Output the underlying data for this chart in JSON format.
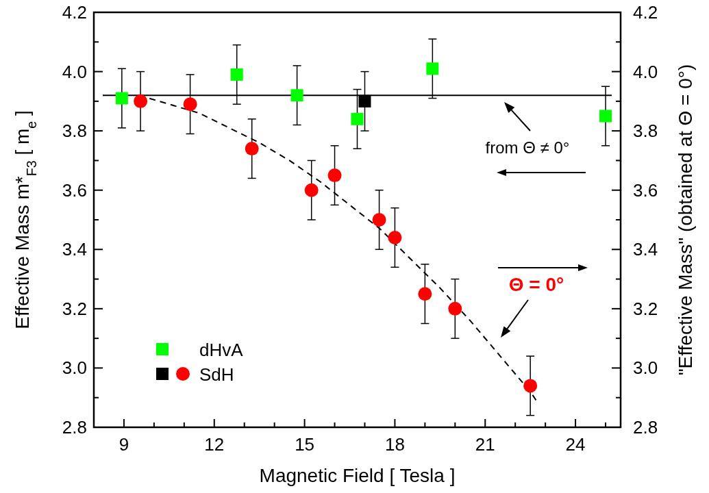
{
  "chart_data": {
    "type": "scatter",
    "xlabel": "Magnetic Field  [ Tesla ]",
    "ylabel": "Effective Mass  m*$_{F3}$ [ m$_{e}$ ]",
    "y2label": "\"Effective Mass\"  (obtained at Θ = 0°)",
    "xlim": [
      8,
      25.5
    ],
    "xticks": [
      {
        "value": 8,
        "label": null
      },
      9,
      {
        "value": 10,
        "label": null
      },
      {
        "value": 11,
        "label": null
      },
      12,
      {
        "value": 13,
        "label": null
      },
      {
        "value": 14,
        "label": null
      },
      15,
      {
        "value": 16,
        "label": null
      },
      {
        "value": 17,
        "label": null
      },
      18,
      {
        "value": 19,
        "label": null
      },
      {
        "value": 20,
        "label": null
      },
      21,
      {
        "value": 22,
        "label": null
      },
      {
        "value": 23,
        "label": null
      },
      24,
      {
        "value": 25,
        "label": null
      }
    ],
    "ylim": [
      2.8,
      4.2
    ],
    "yticks": [
      {
        "value": 2.8,
        "label": "2.8"
      },
      {
        "value": 2.9,
        "label": null
      },
      {
        "value": 3.0,
        "label": "3.0"
      },
      {
        "value": 3.1,
        "label": null
      },
      {
        "value": 3.2,
        "label": "3.2"
      },
      {
        "value": 3.3,
        "label": null
      },
      {
        "value": 3.4,
        "label": "3.4"
      },
      {
        "value": 3.5,
        "label": null
      },
      {
        "value": 3.6,
        "label": "3.6"
      },
      {
        "value": 3.7,
        "label": null
      },
      {
        "value": 3.8,
        "label": "3.8"
      },
      {
        "value": 3.9,
        "label": null
      },
      {
        "value": 4.0,
        "label": "4.0"
      },
      {
        "value": 4.1,
        "label": null
      },
      {
        "value": 4.2,
        "label": "4.2"
      }
    ],
    "y2lim": [
      2.8,
      4.2
    ],
    "y2ticks": [
      {
        "value": 2.8,
        "label": "2.8"
      },
      {
        "value": 2.9,
        "label": null
      },
      {
        "value": 3.0,
        "label": "3.0"
      },
      {
        "value": 3.1,
        "label": null
      },
      {
        "value": 3.2,
        "label": "3.2"
      },
      {
        "value": 3.3,
        "label": null
      },
      {
        "value": 3.4,
        "label": "3.4"
      },
      {
        "value": 3.5,
        "label": null
      },
      {
        "value": 3.6,
        "label": "3.6"
      },
      {
        "value": 3.7,
        "label": null
      },
      {
        "value": 3.8,
        "label": "3.8"
      },
      {
        "value": 3.9,
        "label": null
      },
      {
        "value": 4.0,
        "label": "4.0"
      },
      {
        "value": 4.1,
        "label": null
      },
      {
        "value": 4.2,
        "label": "4.2"
      }
    ],
    "grid": false,
    "legend": "bottom left",
    "series": [
      {
        "name": "dHvA",
        "color": "#00ff00",
        "marker": "square",
        "x": [
          8.93,
          12.75,
          14.75,
          16.75,
          19.25,
          25.0
        ],
        "values": [
          3.91,
          3.99,
          3.92,
          3.84,
          4.01,
          3.85
        ],
        "errors": [
          0.1,
          0.1,
          0.1,
          0.1,
          0.1,
          0.1
        ]
      },
      {
        "name": "SdH",
        "color": "#ff0000",
        "marker": "circle",
        "x": [
          9.55,
          11.2,
          13.25,
          15.23,
          16.0,
          17.48,
          18.0,
          19.0,
          20.0,
          22.5
        ],
        "values": [
          3.9,
          3.89,
          3.74,
          3.6,
          3.65,
          3.5,
          3.44,
          3.25,
          3.2,
          2.94
        ],
        "errors": [
          0.1,
          0.1,
          0.1,
          0.1,
          0.1,
          0.1,
          0.1,
          0.1,
          0.1,
          0.1
        ]
      },
      {
        "color": "#000000",
        "marker": "square",
        "x": [
          17.0
        ],
        "values": [
          3.9
        ],
        "errors": [
          0.1
        ]
      },
      {
        "type": "line",
        "color": "#000000",
        "line_style": "dashed",
        "marker": "none",
        "x": [
          9.5,
          10.5,
          11.5,
          12.5,
          13.5,
          14.5,
          15.5,
          16.5,
          17.5,
          18.5,
          19.5,
          20.5,
          21.5,
          22.5,
          22.7
        ],
        "values": [
          3.92,
          3.89,
          3.86,
          3.81,
          3.76,
          3.7,
          3.63,
          3.55,
          3.47,
          3.37,
          3.27,
          3.16,
          3.04,
          2.92,
          2.89
        ]
      }
    ],
    "ref_lines": [
      {
        "axis": "y",
        "value": 3.92,
        "color": "#000000",
        "line_style": "solid"
      }
    ],
    "annotations": [
      "from Θ ≠ 0°",
      "Θ = 0°"
    ]
  }
}
